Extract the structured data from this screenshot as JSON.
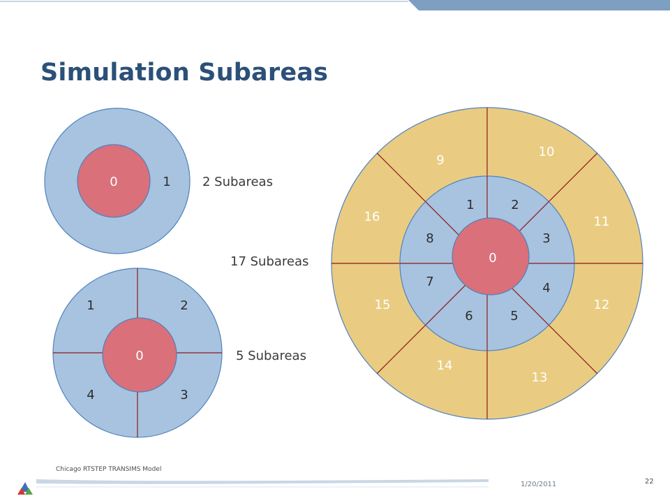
{
  "slide": {
    "title": "Simulation Subareas",
    "footer_text": "Chicago RTSTEP TRANSIMS Model",
    "date": "1/20/2011",
    "page_number": "22"
  },
  "colors": {
    "title": "#2b5079",
    "inner_fill": "#d9707a",
    "ring_fill": "#a8c3df",
    "outer_fill": "#e9cc82",
    "outline": "#4f81bd",
    "divider": "#8b1a1a",
    "header_bar": "#7f9fc2"
  },
  "diagrams": {
    "two": {
      "caption": "2 Subareas",
      "labels": [
        "0",
        "1"
      ]
    },
    "five": {
      "caption": "5 Subareas",
      "labels": [
        "0",
        "1",
        "2",
        "3",
        "4"
      ]
    },
    "seventeen": {
      "caption": "17 Subareas",
      "center_label": "0",
      "inner_labels": [
        "1",
        "2",
        "3",
        "4",
        "5",
        "6",
        "7",
        "8"
      ],
      "outer_labels": [
        "9",
        "10",
        "11",
        "12",
        "13",
        "14",
        "15",
        "16"
      ]
    }
  }
}
